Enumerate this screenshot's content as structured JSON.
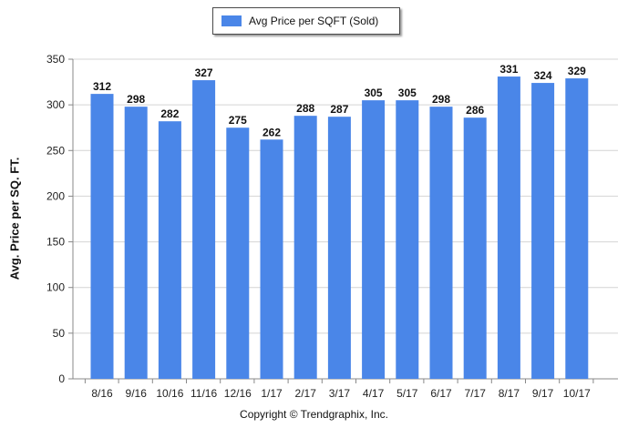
{
  "chart_data": {
    "type": "bar",
    "title": "",
    "xlabel": "",
    "ylabel": "Avg. Price per SQ. FT.",
    "categories": [
      "8/16",
      "9/16",
      "10/16",
      "11/16",
      "12/16",
      "1/17",
      "2/17",
      "3/17",
      "4/17",
      "5/17",
      "6/17",
      "7/17",
      "8/17",
      "9/17",
      "10/17"
    ],
    "series": [
      {
        "name": "Avg Price per SQFT (Sold)",
        "values": [
          312,
          298,
          282,
          327,
          275,
          262,
          288,
          287,
          305,
          305,
          298,
          286,
          331,
          324,
          329
        ],
        "color": "#4a86e8"
      }
    ],
    "ylim": [
      0,
      350
    ],
    "yticks": [
      0,
      50,
      100,
      150,
      200,
      250,
      300,
      350
    ],
    "grid": true,
    "legend": "top-center",
    "data_labels": true
  },
  "footer": {
    "copyright": "Copyright © Trendgraphix, Inc."
  }
}
